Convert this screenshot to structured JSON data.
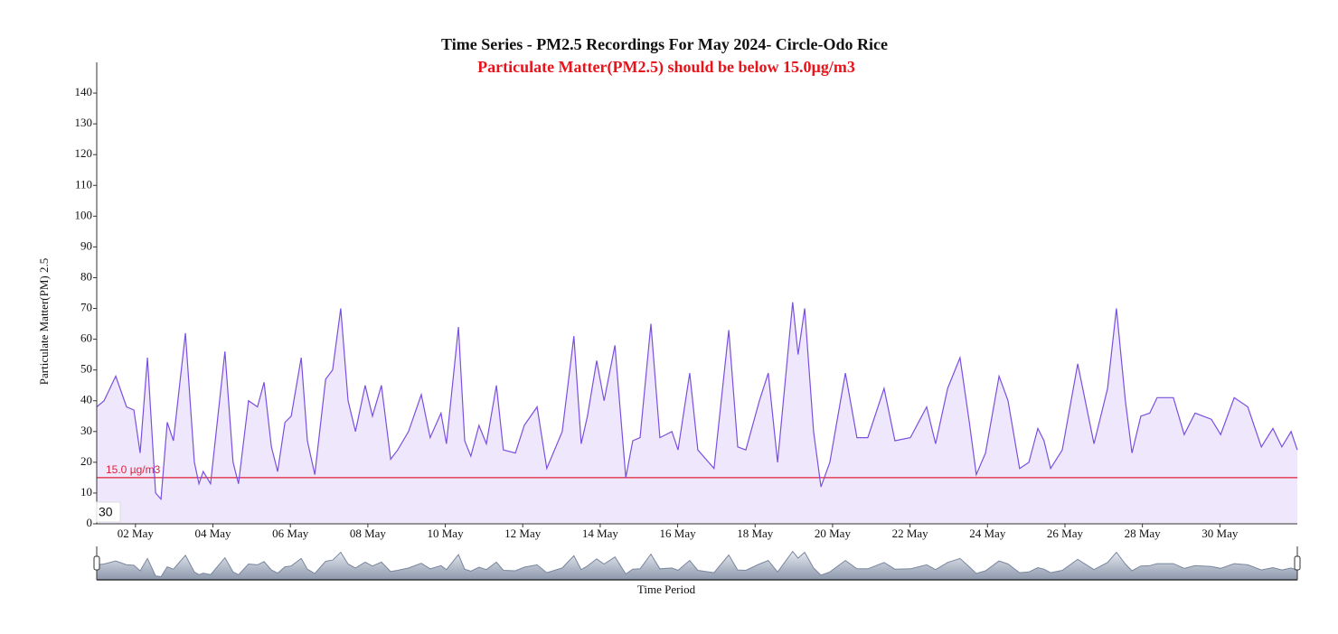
{
  "chart_data": {
    "type": "area",
    "title": "Time Series - PM2.5 Recordings For May 2024- Circle-Odo Rice",
    "subtitle": "Particulate Matter(PM2.5) should be below 15.0µg/m3",
    "x_label": "Time Period",
    "y_label": "Particulate Matter(PM) 2.5",
    "range_label": "30",
    "threshold": {
      "value": 15,
      "label": "15.0 µg/m3",
      "color": "#e0203a"
    },
    "x": [
      1.0,
      1.19,
      1.49,
      1.77,
      1.96,
      2.12,
      2.31,
      2.52,
      2.66,
      2.82,
      2.98,
      3.29,
      3.52,
      3.64,
      3.75,
      3.94,
      4.31,
      4.52,
      4.66,
      4.92,
      5.15,
      5.32,
      5.51,
      5.67,
      5.86,
      6.02,
      6.28,
      6.44,
      6.63,
      6.91,
      7.09,
      7.3,
      7.49,
      7.68,
      7.93,
      8.12,
      8.35,
      8.59,
      8.77,
      9.05,
      9.38,
      9.61,
      9.89,
      10.03,
      10.34,
      10.5,
      10.66,
      10.87,
      11.06,
      11.32,
      11.5,
      11.81,
      12.04,
      12.37,
      12.62,
      13.02,
      13.32,
      13.51,
      13.67,
      13.91,
      14.1,
      14.38,
      14.66,
      14.84,
      15.03,
      15.31,
      15.54,
      15.85,
      16.01,
      16.31,
      16.52,
      16.94,
      17.32,
      17.55,
      17.76,
      18.11,
      18.34,
      18.58,
      18.97,
      19.11,
      19.28,
      19.51,
      19.7,
      19.93,
      20.33,
      20.63,
      20.91,
      21.33,
      21.61,
      22.01,
      22.43,
      22.66,
      22.97,
      23.29,
      23.53,
      23.71,
      23.95,
      24.3,
      24.53,
      24.83,
      25.07,
      25.3,
      25.46,
      25.63,
      25.93,
      26.33,
      26.75,
      27.1,
      27.33,
      27.56,
      27.73,
      27.96,
      28.19,
      28.38,
      28.8,
      29.08,
      29.36,
      29.78,
      30.02,
      30.37,
      30.72,
      31.07,
      31.37,
      31.6,
      31.84,
      32.0
    ],
    "series": [
      {
        "name": "PM2.5",
        "color": "#7b4fe0",
        "fill": "#efe8fd",
        "values": [
          38,
          40,
          48,
          38,
          37,
          23,
          54,
          10,
          8,
          33,
          27,
          62,
          20,
          13,
          17,
          13,
          56,
          20,
          13,
          40,
          38,
          46,
          25,
          17,
          33,
          35,
          54,
          27,
          16,
          47,
          50,
          70,
          40,
          30,
          45,
          35,
          45,
          21,
          24,
          30,
          42,
          28,
          36,
          26,
          64,
          27,
          22,
          32,
          26,
          45,
          24,
          23,
          32,
          38,
          18,
          30,
          61,
          26,
          35,
          53,
          40,
          58,
          15,
          27,
          28,
          65,
          28,
          30,
          24,
          49,
          24,
          18,
          63,
          25,
          24,
          40,
          49,
          20,
          72,
          55,
          70,
          30,
          12,
          20,
          49,
          28,
          28,
          44,
          27,
          28,
          38,
          26,
          44,
          54,
          33,
          16,
          23,
          48,
          40,
          18,
          20,
          31,
          27,
          18,
          24,
          52,
          26,
          44,
          70,
          40,
          23,
          35,
          36,
          41,
          41,
          29,
          36,
          34,
          29,
          41,
          38,
          25,
          31,
          25,
          30,
          24
        ]
      }
    ],
    "xlim": [
      1,
      32
    ],
    "xticks": [
      {
        "value": 2,
        "label": "02 May"
      },
      {
        "value": 4,
        "label": "04 May"
      },
      {
        "value": 6,
        "label": "06 May"
      },
      {
        "value": 8,
        "label": "08 May"
      },
      {
        "value": 10,
        "label": "10 May"
      },
      {
        "value": 12,
        "label": "12 May"
      },
      {
        "value": 14,
        "label": "14 May"
      },
      {
        "value": 16,
        "label": "16 May"
      },
      {
        "value": 18,
        "label": "18 May"
      },
      {
        "value": 20,
        "label": "20 May"
      },
      {
        "value": 22,
        "label": "22 May"
      },
      {
        "value": 24,
        "label": "24 May"
      },
      {
        "value": 26,
        "label": "26 May"
      },
      {
        "value": 28,
        "label": "28 May"
      },
      {
        "value": 30,
        "label": "30 May"
      }
    ],
    "ylim": [
      0,
      150
    ],
    "yticks": [
      0,
      10,
      20,
      30,
      40,
      50,
      60,
      70,
      80,
      90,
      100,
      110,
      120,
      130,
      140
    ]
  }
}
